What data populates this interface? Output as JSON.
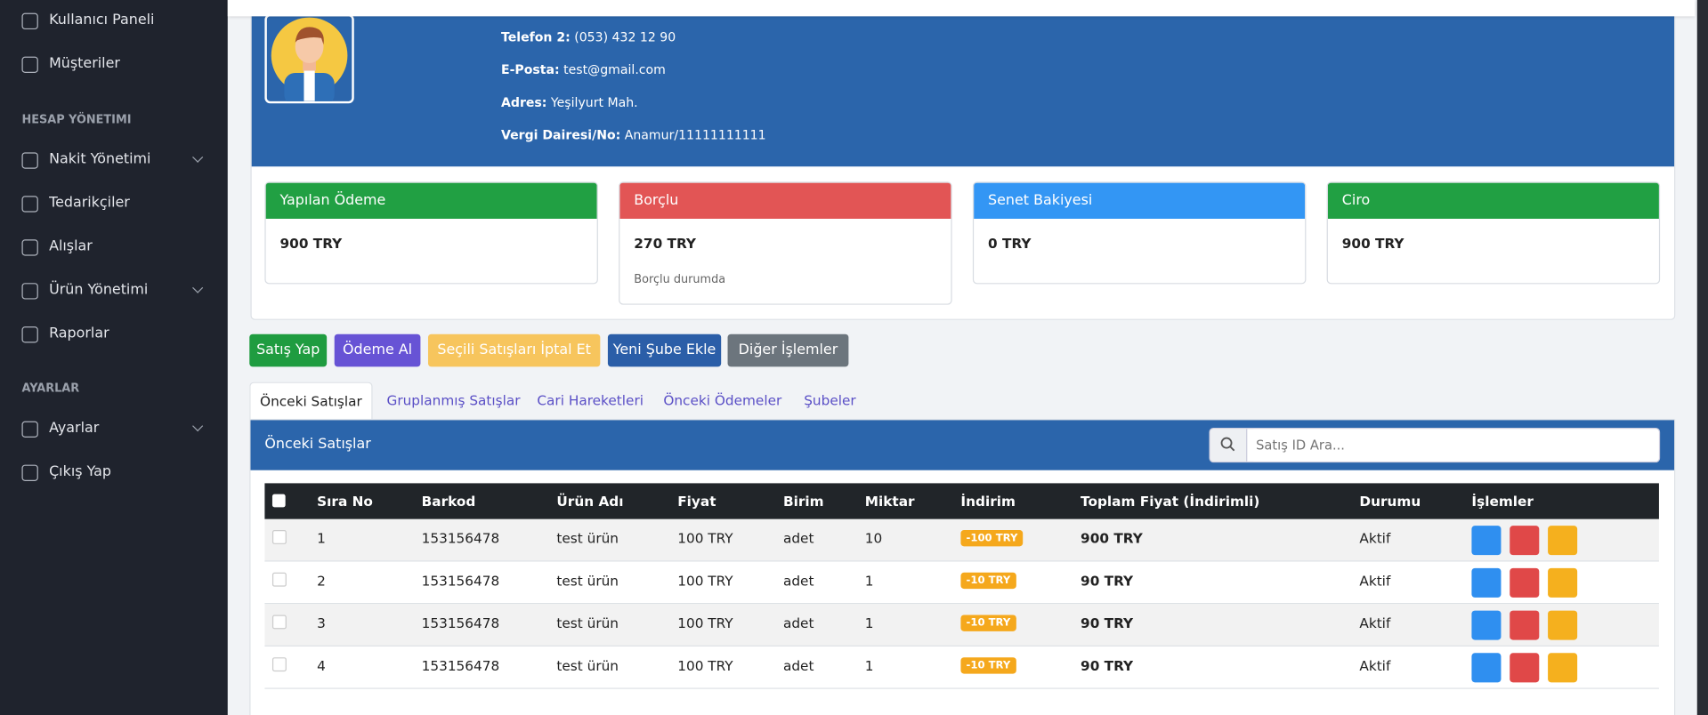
{
  "sidebar": {
    "items": [
      {
        "label": "Kullanıcı Paneli"
      },
      {
        "label": "Müşteriler"
      },
      {
        "section": "HESAP YÖNETIMI"
      },
      {
        "label": "Nakit Yönetimi"
      },
      {
        "label": "Tedarikçiler"
      },
      {
        "label": "Alışlar"
      },
      {
        "label": "Ürün Yönetimi"
      },
      {
        "label": "Raporlar"
      },
      {
        "section": "AYARLAR"
      },
      {
        "label": "Ayarlar"
      },
      {
        "label": "Çıkış Yap"
      }
    ]
  },
  "profile": {
    "fields": [
      {
        "label": "Telefon 2:",
        "value": "(053) 432 12 90"
      },
      {
        "label": "E-Posta:",
        "value": "test@gmail.com"
      },
      {
        "label": "Adres:",
        "value": "Yeşilyurt Mah."
      },
      {
        "label": "Vergi Dairesi/No:",
        "value": "Anamur/11111111111"
      }
    ]
  },
  "cards": [
    {
      "title": "Yapılan Ödeme",
      "value": "900 TRY"
    },
    {
      "title": "Borçlu",
      "value": "270 TRY",
      "note": "Borçlu durumda"
    },
    {
      "title": "Senet Bakiyesi",
      "value": "0 TRY"
    },
    {
      "title": "Ciro",
      "value": "900 TRY"
    }
  ],
  "buttons": [
    "Satış Yap",
    "Ödeme Al",
    "Seçili Satışları İptal Et",
    "Yeni Şube Ekle",
    "Diğer İşlemler"
  ],
  "tabs": [
    "Önceki Satışlar",
    "Gruplanmış Satışlar",
    "Cari Hareketleri",
    "Önceki Ödemeler",
    "Şubeler"
  ],
  "panel": {
    "title": "Önceki Satışlar",
    "search_placeholder": "Satış ID Ara..."
  },
  "table": {
    "columns": [
      "Sıra No",
      "Barkod",
      "Ürün Adı",
      "Fiyat",
      "Birim",
      "Miktar",
      "İndirim",
      "Toplam Fiyat (İndirimli)",
      "Durumu",
      "İşlemler"
    ],
    "rows": [
      [
        "1",
        "153156478",
        "test ürün",
        "100 TRY",
        "adet",
        "10",
        "-100 TRY",
        "900 TRY",
        "Aktif"
      ],
      [
        "2",
        "153156478",
        "test ürün",
        "100 TRY",
        "adet",
        "1",
        "-10 TRY",
        "90 TRY",
        "Aktif"
      ],
      [
        "3",
        "153156478",
        "test ürün",
        "100 TRY",
        "adet",
        "1",
        "-10 TRY",
        "90 TRY",
        "Aktif"
      ],
      [
        "4",
        "153156478",
        "test ürün",
        "100 TRY",
        "adet",
        "1",
        "-10 TRY",
        "90 TRY",
        "Aktif"
      ]
    ]
  }
}
